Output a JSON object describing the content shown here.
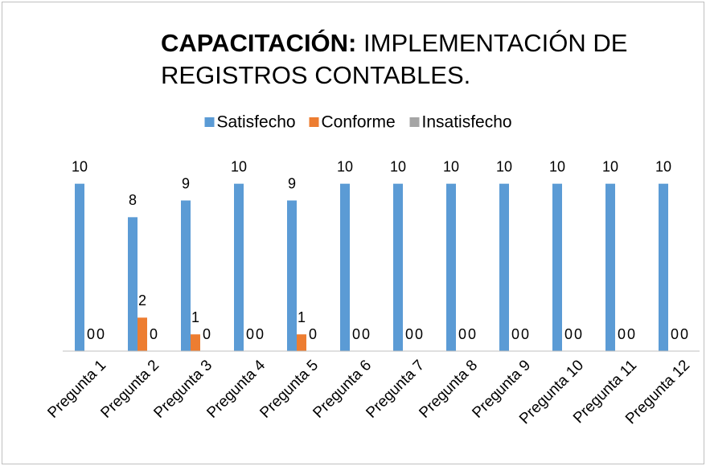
{
  "chart_data": {
    "type": "bar",
    "title": [
      "CAPACITACIÓN:",
      "IMPLEMENTACIÓN DE REGISTROS CONTABLES."
    ],
    "categories": [
      "Pregunta 1",
      "Pregunta 2",
      "Pregunta 3",
      "Pregunta 4",
      "Pregunta 5",
      "Pregunta 6",
      "Pregunta 7",
      "Pregunta 8",
      "Pregunta 9",
      "Pregunta 10",
      "Pregunta 11",
      "Pregunta 12"
    ],
    "series": [
      {
        "name": "Satisfecho",
        "color": "#5b9bd5",
        "values": [
          10,
          8,
          9,
          10,
          9,
          10,
          10,
          10,
          10,
          10,
          10,
          10
        ]
      },
      {
        "name": "Conforme",
        "color": "#ed7d31",
        "values": [
          0,
          2,
          1,
          0,
          1,
          0,
          0,
          0,
          0,
          0,
          0,
          0
        ]
      },
      {
        "name": "Insatisfecho",
        "color": "#a5a5a5",
        "values": [
          0,
          0,
          0,
          0,
          0,
          0,
          0,
          0,
          0,
          0,
          0,
          0
        ]
      }
    ],
    "ylim": [
      0,
      12
    ],
    "legend": "top"
  }
}
